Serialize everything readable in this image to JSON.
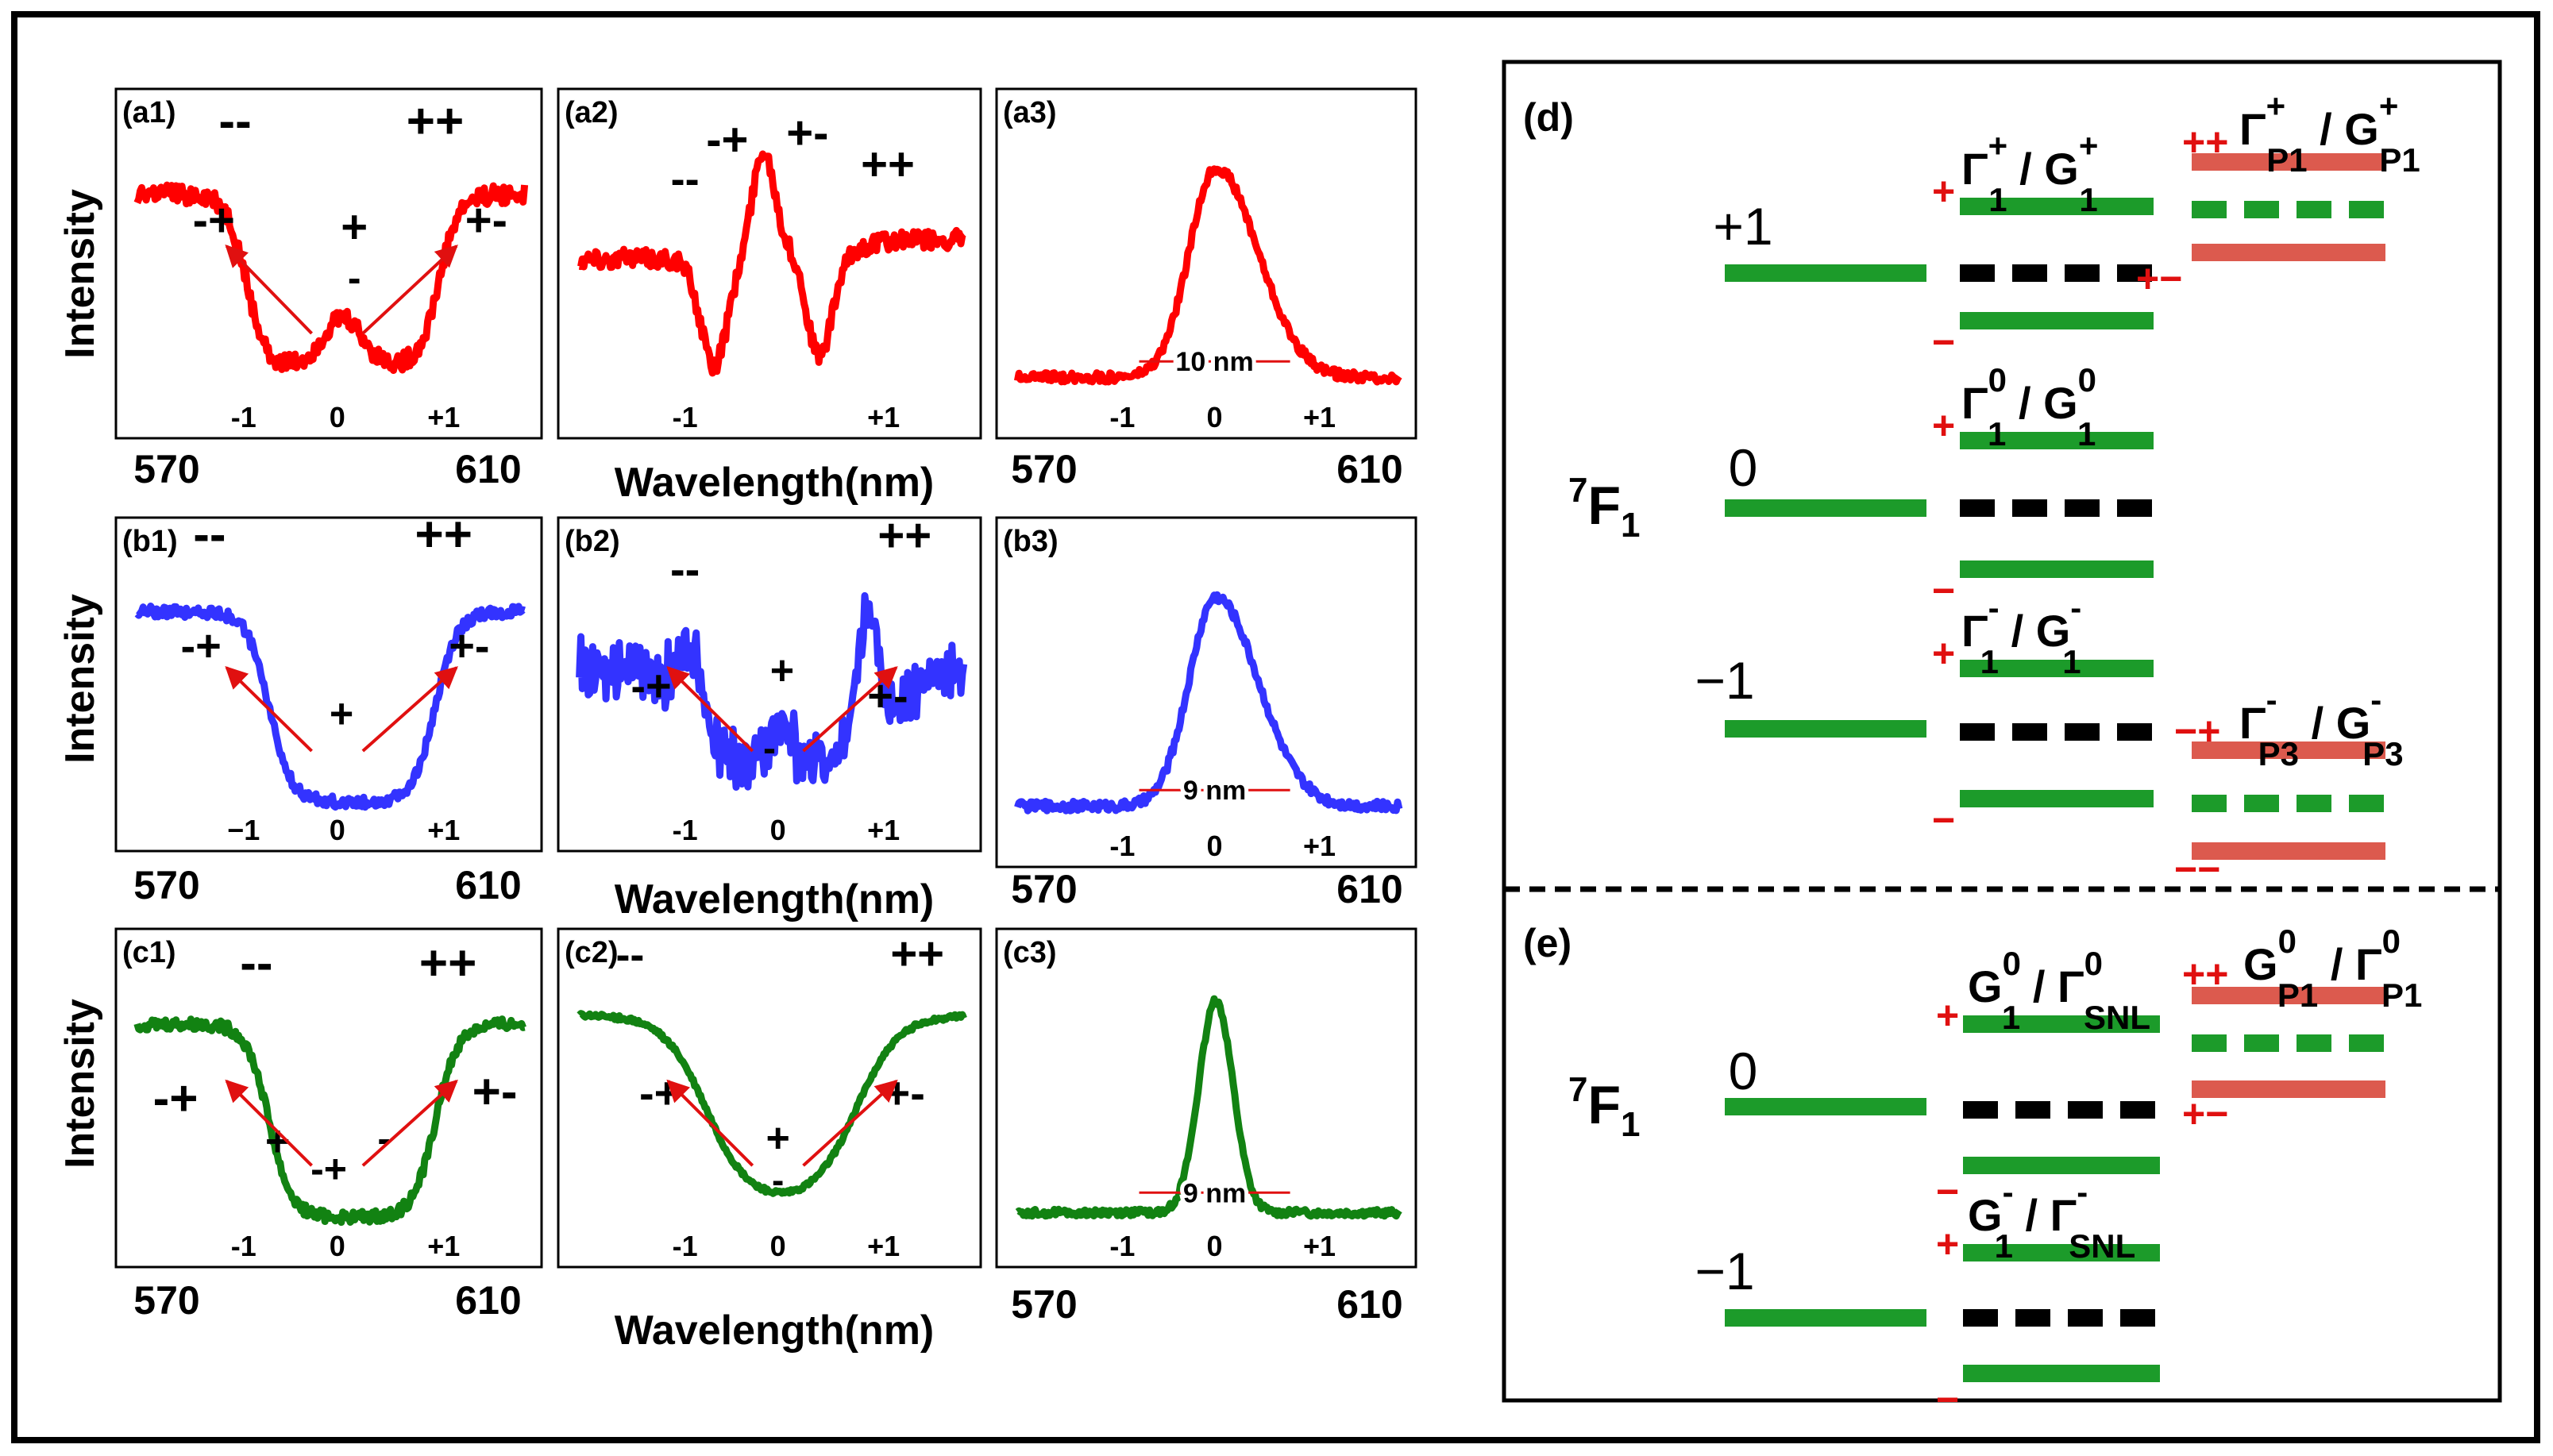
{
  "colors": {
    "red": "#ff0000",
    "blue": "#3333ff",
    "green": "#128212",
    "level_green": "#1c9b2a",
    "level_salmon": "#dc5a4e",
    "arrow": "#e01010",
    "black": "#000000"
  },
  "axis": {
    "ylabel": "Intensity",
    "xlabel": "Wavelength(nm)",
    "x_min_label": "570",
    "x_max_label": "610"
  },
  "chart_data": [
    {
      "id": "a1",
      "type": "line",
      "panel_label": "(a1)",
      "color": "red",
      "profile": "dip2",
      "xlim": [
        570,
        610
      ],
      "ticks": {
        "minus": "-1",
        "zero": "0",
        "plus": "+1"
      },
      "annotations": [
        "--",
        "++",
        "-+",
        "+-",
        "+",
        "-"
      ],
      "fwhm_label": ""
    },
    {
      "id": "a2",
      "type": "line",
      "panel_label": "(a2)",
      "color": "red",
      "profile": "dip2peak",
      "xlim": [
        570,
        610
      ],
      "ticks": {
        "minus": "-1",
        "zero": "",
        "plus": "+1"
      },
      "annotations": [
        "--",
        "-+",
        "+-",
        "++"
      ],
      "fwhm_label": ""
    },
    {
      "id": "a3",
      "type": "line",
      "panel_label": "(a3)",
      "color": "red",
      "profile": "peak",
      "xlim": [
        570,
        610
      ],
      "ticks": {
        "minus": "-1",
        "zero": "0",
        "plus": "+1"
      },
      "annotations": [],
      "fwhm_label": "10 nm"
    },
    {
      "id": "b1",
      "type": "line",
      "panel_label": "(b1)",
      "color": "blue",
      "profile": "well",
      "xlim": [
        570,
        610
      ],
      "ticks": {
        "minus": "−1",
        "zero": "0",
        "plus": "+1"
      },
      "annotations": [
        "--",
        "++",
        "-+",
        "+-",
        "+"
      ],
      "fwhm_label": ""
    },
    {
      "id": "b2",
      "type": "line",
      "panel_label": "(b2)",
      "color": "blue",
      "profile": "noisy",
      "xlim": [
        570,
        610
      ],
      "ticks": {
        "minus": "-1",
        "zero": "0",
        "plus": "+1"
      },
      "annotations": [
        "--",
        "++",
        "-+",
        "+-",
        "+",
        "-"
      ],
      "fwhm_label": ""
    },
    {
      "id": "b3",
      "type": "line",
      "panel_label": "(b3)",
      "color": "blue",
      "profile": "peak",
      "xlim": [
        570,
        610
      ],
      "ticks": {
        "minus": "-1",
        "zero": "0",
        "plus": "+1"
      },
      "annotations": [],
      "fwhm_label": "9 nm"
    },
    {
      "id": "c1",
      "type": "line",
      "panel_label": "(c1)",
      "color": "green",
      "profile": "well",
      "xlim": [
        570,
        610
      ],
      "ticks": {
        "minus": "-1",
        "zero": "0",
        "plus": "+1"
      },
      "annotations": [
        "--",
        "++",
        "-+",
        "+-",
        "+",
        "-",
        "-+"
      ],
      "fwhm_label": ""
    },
    {
      "id": "c2",
      "type": "line",
      "panel_label": "(c2)",
      "color": "green",
      "profile": "vdip",
      "xlim": [
        570,
        610
      ],
      "ticks": {
        "minus": "-1",
        "zero": "0",
        "plus": "+1"
      },
      "annotations": [
        "--",
        "++",
        "-+",
        "+-",
        "+",
        "-"
      ],
      "fwhm_label": ""
    },
    {
      "id": "c3",
      "type": "line",
      "panel_label": "(c3)",
      "color": "green",
      "profile": "narrowpeak",
      "xlim": [
        570,
        610
      ],
      "ticks": {
        "minus": "-1",
        "zero": "0",
        "plus": "+1"
      },
      "annotations": [],
      "fwhm_label": "9 nm"
    }
  ],
  "diagram_d": {
    "label": "(d)",
    "term_main": "F",
    "term_sup": "7",
    "term_sub": "1",
    "levels": [
      "+1",
      "0",
      "−1"
    ],
    "gamma1_plus": {
      "main": "Γ",
      "sub": "1",
      "sup": "+",
      "sep": " / ",
      "main2": "G",
      "sub2": "1",
      "sup2": "+"
    },
    "gamma1_zero": {
      "main": "Γ",
      "sub": "1",
      "sup": "0",
      "sep": " / ",
      "main2": "G",
      "sub2": "1",
      "sup2": "0"
    },
    "gamma1_minus": {
      "main": "Γ",
      "sub": "1",
      "sup": "-",
      "sep": " / ",
      "main2": "G",
      "sub2": "1",
      "sup2": "-"
    },
    "gammaP1": {
      "main": "Γ",
      "sub": "P1",
      "sup": "+",
      "sep": " / ",
      "main2": "G",
      "sub2": "P1",
      "sup2": "+"
    },
    "gammaP3": {
      "main": "Γ",
      "sub": "P3",
      "sup": "-",
      "sep": " / ",
      "main2": "G",
      "sub2": "P3",
      "sup2": "-"
    },
    "signs": {
      "plus": "+",
      "minus": "−",
      "pp": "++",
      "pm": "+−",
      "mp": "−+",
      "mm": "−−"
    }
  },
  "diagram_e": {
    "label": "(e)",
    "term_main": "F",
    "term_sup": "7",
    "term_sub": "1",
    "levels": [
      "0",
      "−1"
    ],
    "g1_zero": {
      "main": "G",
      "sub": "1",
      "sup": "0",
      "sep": " / ",
      "main2": "Γ",
      "sub2": "SNL",
      "sup2": "0"
    },
    "g1_minus": {
      "main": "G",
      "sub": "1",
      "sup": "-",
      "sep": " / ",
      "main2": "Γ",
      "sub2": "SNL",
      "sup2": "-"
    },
    "gP1": {
      "main": "G",
      "sub": "P1",
      "sup": "0",
      "sep": " / ",
      "main2": "Γ",
      "sub2": "P1",
      "sup2": "0"
    },
    "signs": {
      "plus": "+",
      "minus": "−",
      "pp": "++",
      "pm": "+−"
    }
  }
}
